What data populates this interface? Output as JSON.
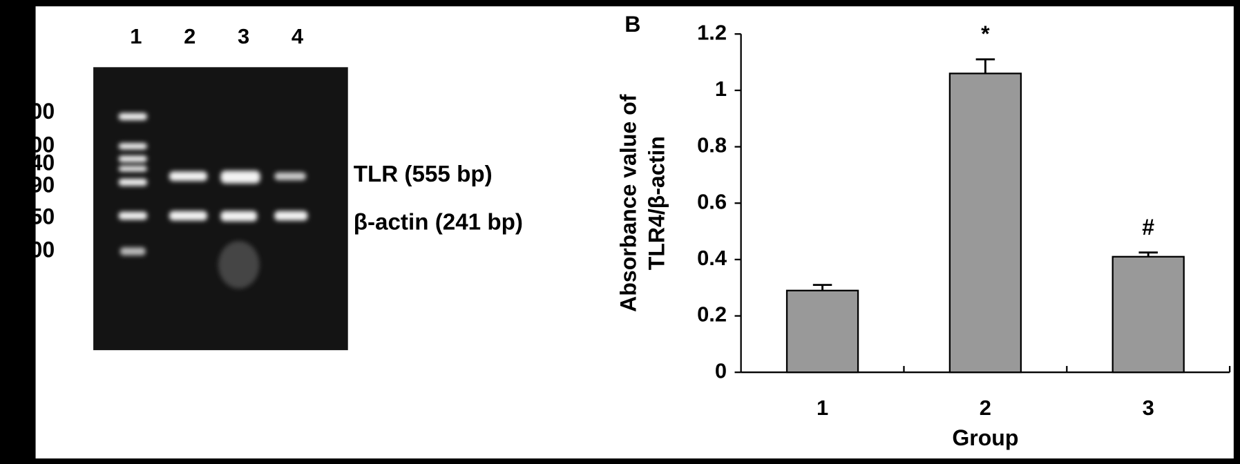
{
  "panel_a": {
    "lane_labels": [
      "1",
      "2",
      "3",
      "4"
    ],
    "marker_labels": [
      "00",
      "00",
      "40",
      "90",
      "50",
      "00"
    ],
    "band_labels": [
      "TLR (555 bp)",
      "β-actin (241 bp)"
    ]
  },
  "chart_data": {
    "type": "bar",
    "panel_label": "B",
    "y_label": [
      "Absorbance value of",
      "TLR4/β-actin"
    ],
    "x_label": "Group",
    "categories": [
      "1",
      "2",
      "3"
    ],
    "values": [
      0.29,
      1.06,
      0.41
    ],
    "errors": [
      0.02,
      0.05,
      0.015
    ],
    "annotations": [
      null,
      "*",
      "#"
    ],
    "color": "#999999",
    "ylim": [
      0,
      1.2
    ],
    "yticks": [
      0,
      0.2,
      0.4,
      0.6,
      0.8,
      1,
      1.2
    ]
  }
}
